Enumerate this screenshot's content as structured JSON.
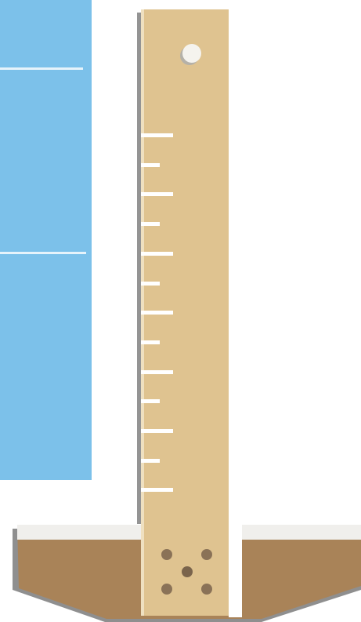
{
  "illustration": {
    "subject": "ruler-stake-in-ground-with-water",
    "colors": {
      "background": "#ffffff",
      "water": "#7cc1ea",
      "water_line": "#e6f3fb",
      "ruler_body": "#dfc390",
      "ruler_highlight": "#efe0c0",
      "ruler_shadow": "#949494",
      "ruler_edge": "#ffffff",
      "tick": "#ffffff",
      "hole": "#f5f3ee",
      "hole_shadow": "#b5b1a8",
      "soil": "#a98358",
      "soil_top": "#f0efec",
      "soil_shadow": "#8f8f8f",
      "rivet": "#8a7257"
    },
    "ruler": {
      "major_ticks": 7,
      "minor_ticks": 6,
      "rivets": 5
    },
    "water": {
      "marker_lines": 2
    }
  }
}
